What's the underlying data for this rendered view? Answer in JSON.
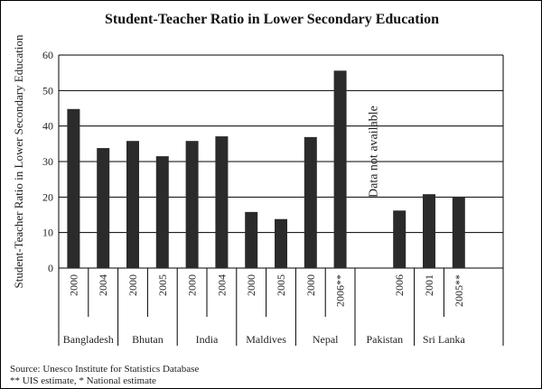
{
  "chart_data": {
    "type": "bar",
    "title": "Student-Teacher Ratio in Lower Secondary Education",
    "ylabel": "Student-Teacher Ratio in Lower Secondary Education",
    "xlabel": "",
    "ylim": [
      0,
      60
    ],
    "yticks": [
      0,
      10,
      20,
      30,
      40,
      50,
      60
    ],
    "grid": true,
    "groups": [
      {
        "country": "Bangladesh",
        "bars": [
          {
            "year": "2000",
            "value": 44.8
          },
          {
            "year": "2004",
            "value": 33.8
          }
        ]
      },
      {
        "country": "Bhutan",
        "bars": [
          {
            "year": "2000",
            "value": 35.8
          },
          {
            "year": "2005",
            "value": 31.5
          }
        ]
      },
      {
        "country": "India",
        "bars": [
          {
            "year": "2000",
            "value": 35.8
          },
          {
            "year": "2004",
            "value": 37.1
          }
        ]
      },
      {
        "country": "Maldives",
        "bars": [
          {
            "year": "2000",
            "value": 15.8
          },
          {
            "year": "2005",
            "value": 13.8
          }
        ]
      },
      {
        "country": "Nepal",
        "bars": [
          {
            "year": "2000",
            "value": 36.9
          },
          {
            "year": "2006**",
            "value": 55.6
          }
        ]
      },
      {
        "country": "Pakistan",
        "bars": [
          {
            "year": "2006",
            "value": 16.2
          }
        ],
        "annotation": "Data not available"
      },
      {
        "country": "Sri Lanka",
        "bars": [
          {
            "year": "2001",
            "value": 20.8
          },
          {
            "year": "2005**",
            "value": 20.1
          }
        ]
      }
    ],
    "bar_color": "#2b2b2b",
    "source": "Source: Unesco Institute for Statistics Database",
    "note": "** UIS estimate, * National estimate"
  }
}
